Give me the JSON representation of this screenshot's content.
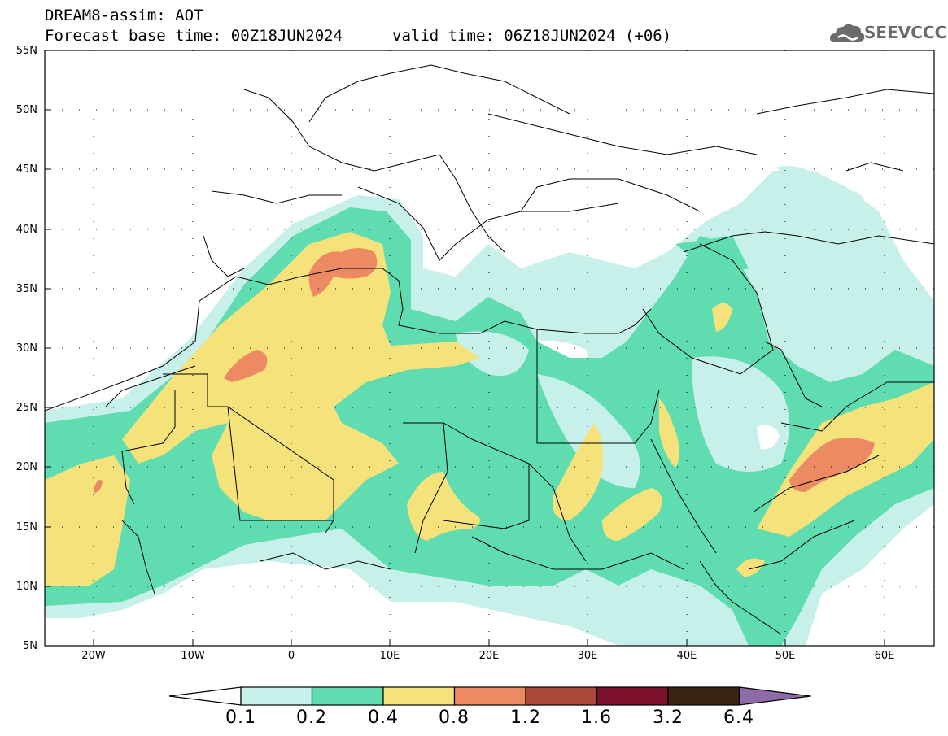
{
  "header": {
    "title": "DREAM8-assim: AOT",
    "base_time": "Forecast base time: 00Z18JUN2024",
    "valid_time": "valid time: 06Z18JUN2024 (+06)",
    "logo_text": "SEEVCCC"
  },
  "map": {
    "lat_labels": [
      "55N",
      "50N",
      "45N",
      "40N",
      "35N",
      "30N",
      "25N",
      "20N",
      "15N",
      "10N",
      "5N"
    ],
    "lon_labels": [
      "20W",
      "10W",
      "0",
      "10E",
      "20E",
      "30E",
      "40E",
      "50E",
      "60E"
    ],
    "lat_range": [
      5,
      55
    ],
    "lon_range": [
      -25,
      65
    ]
  },
  "colorbar": {
    "levels": [
      "0.1",
      "0.2",
      "0.4",
      "0.8",
      "1.2",
      "1.6",
      "3.2",
      "6.4"
    ],
    "colors": [
      "#ffffff",
      "#c8f0ea",
      "#5fdcb0",
      "#f5e27a",
      "#ec8a63",
      "#a9493a",
      "#7c0f2b",
      "#3d2314",
      "#8e6aa8"
    ]
  }
}
